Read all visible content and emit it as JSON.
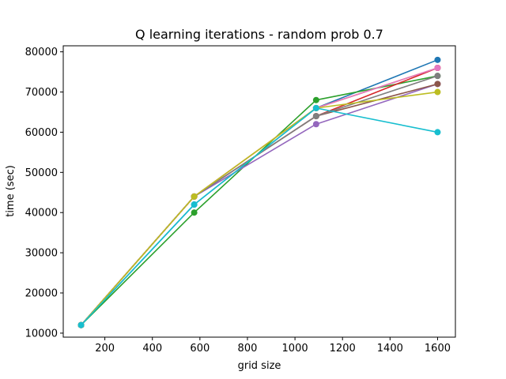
{
  "chart_data": {
    "type": "line",
    "title": "Q learning iterations - random prob 0.7",
    "xlabel": "grid size",
    "ylabel": "time (sec)",
    "x": [
      100,
      576,
      1089,
      1600
    ],
    "xlim": [
      25,
      1675
    ],
    "ylim": [
      9000,
      81500
    ],
    "xticks": [
      200,
      400,
      600,
      800,
      1000,
      1200,
      1400,
      1600
    ],
    "yticks": [
      10000,
      20000,
      30000,
      40000,
      50000,
      60000,
      70000,
      80000
    ],
    "xtick_labels": [
      "200",
      "400",
      "600",
      "800",
      "1000",
      "1200",
      "1400",
      "1600"
    ],
    "ytick_labels": [
      "10000",
      "20000",
      "30000",
      "40000",
      "50000",
      "60000",
      "70000",
      "80000"
    ],
    "grid": false,
    "markers": true,
    "series": [
      {
        "color": "#1f77b4",
        "values": [
          12000,
          42000,
          66000,
          78000
        ]
      },
      {
        "color": "#ff7f0e",
        "values": [
          12000,
          44000,
          66000,
          76000
        ]
      },
      {
        "color": "#2ca02c",
        "values": [
          12000,
          40000,
          68000,
          74000
        ]
      },
      {
        "color": "#d62728",
        "values": [
          12000,
          44000,
          64000,
          76000
        ]
      },
      {
        "color": "#9467bd",
        "values": [
          12000,
          44000,
          62000,
          72000
        ]
      },
      {
        "color": "#8c564b",
        "values": [
          12000,
          44000,
          64000,
          72000
        ]
      },
      {
        "color": "#e377c2",
        "values": [
          12000,
          44000,
          66000,
          76000
        ]
      },
      {
        "color": "#7f7f7f",
        "values": [
          12000,
          44000,
          64000,
          74000
        ]
      },
      {
        "color": "#bcbd22",
        "values": [
          12000,
          44000,
          66000,
          70000
        ]
      },
      {
        "color": "#17becf",
        "values": [
          12000,
          42000,
          66000,
          60000
        ]
      }
    ]
  }
}
